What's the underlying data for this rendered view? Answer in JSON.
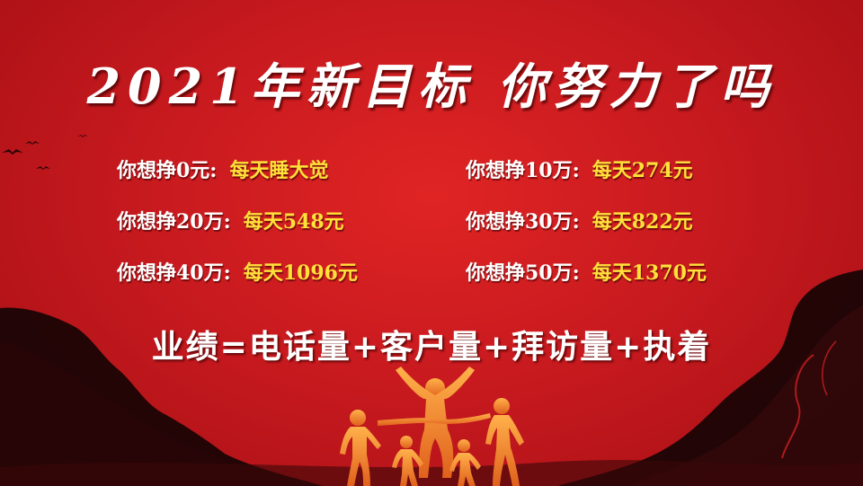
{
  "title": "2021年新目标  你努力了吗",
  "targets": [
    {
      "label": "你想挣0元:",
      "value": "每天睡大觉"
    },
    {
      "label": "你想挣10万:",
      "value": "每天274元"
    },
    {
      "label": "你想挣20万:",
      "value": "每天548元"
    },
    {
      "label": "你想挣30万:",
      "value": "每天822元"
    },
    {
      "label": "你想挣40万:",
      "value": "每天1096元"
    },
    {
      "label": "你想挣50万:",
      "value": "每天1370元"
    }
  ],
  "formula": "业绩=电话量+客户量+拜访量+执着",
  "colors": {
    "background": "#c81a1f",
    "label": "#ffffff",
    "value": "#ffe13a",
    "mountain": "#1a0405",
    "runner": "#f08a2a"
  }
}
